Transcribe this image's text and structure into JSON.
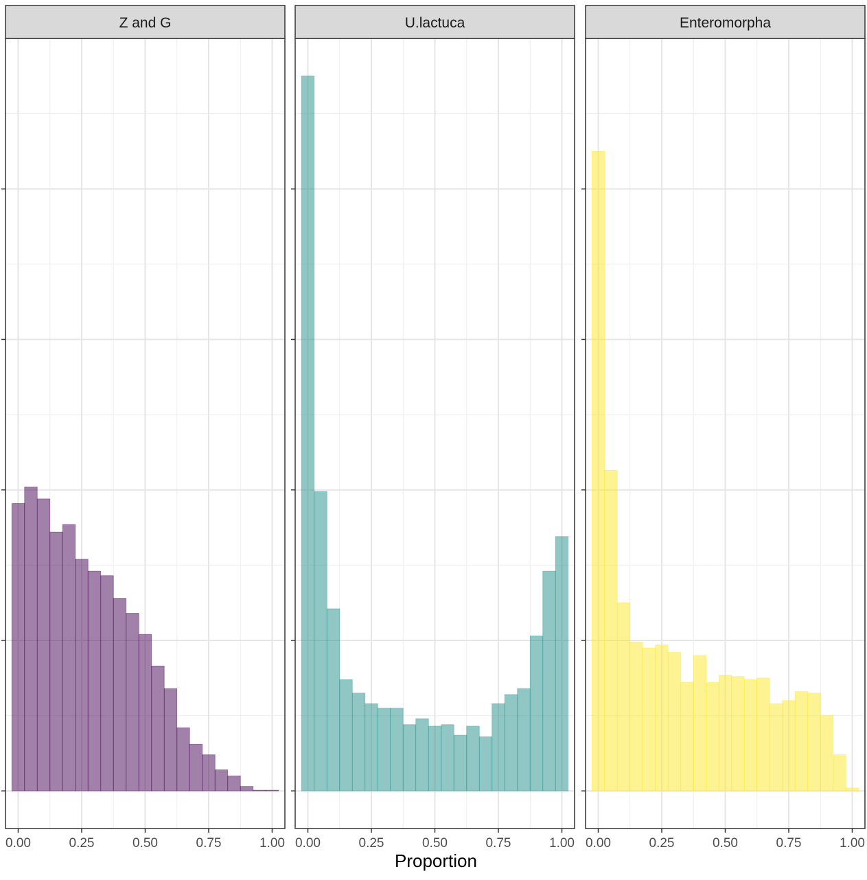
{
  "chart_data": {
    "type": "bar",
    "subtype": "faceted-histogram",
    "xlabel": "Proportion",
    "ylabel": "",
    "xlim": [
      -0.05,
      1.05
    ],
    "x_ticks": [
      0,
      0.25,
      0.5,
      0.75,
      1
    ],
    "x_tick_labels": [
      "0.00",
      "0.25",
      "0.50",
      "0.75",
      "1.00"
    ],
    "ylim": [
      -2.5,
      50
    ],
    "y_major_gridlines": [
      0,
      10,
      20,
      30,
      40
    ],
    "y_minor_gridlines": [
      5,
      15,
      25,
      35,
      45
    ],
    "y_tick_labels_shown": false,
    "grid": true,
    "legend": "none",
    "bin_width": 0.05,
    "bin_centers": [
      0.0,
      0.05,
      0.1,
      0.15,
      0.2,
      0.25,
      0.3,
      0.35,
      0.4,
      0.45,
      0.5,
      0.55,
      0.6,
      0.65,
      0.7,
      0.75,
      0.8,
      0.85,
      0.9,
      0.95,
      1.0
    ],
    "series": [
      {
        "name": "Z and G",
        "color": "#440154",
        "values": [
          19.1,
          20.2,
          19.4,
          17.2,
          17.7,
          15.4,
          14.6,
          14.3,
          12.8,
          11.8,
          10.4,
          8.3,
          6.8,
          4.2,
          3.1,
          2.4,
          1.4,
          1.0,
          0.3,
          0.05,
          0.05
        ]
      },
      {
        "name": "U.lactuca",
        "color": "#21908C",
        "values": [
          47.5,
          19.9,
          12.1,
          7.4,
          6.5,
          5.8,
          5.5,
          5.5,
          4.4,
          4.8,
          4.3,
          4.4,
          3.7,
          4.3,
          3.6,
          5.8,
          6.4,
          6.8,
          10.3,
          14.6,
          16.9
        ]
      },
      {
        "name": "Enteromorpha",
        "color": "#FDE725",
        "values": [
          42.5,
          21.3,
          12.5,
          9.9,
          9.5,
          9.7,
          9.2,
          7.2,
          9.0,
          7.2,
          7.7,
          7.6,
          7.4,
          7.5,
          5.8,
          6.0,
          6.6,
          6.5,
          5.0,
          2.4,
          0.2
        ]
      }
    ]
  }
}
